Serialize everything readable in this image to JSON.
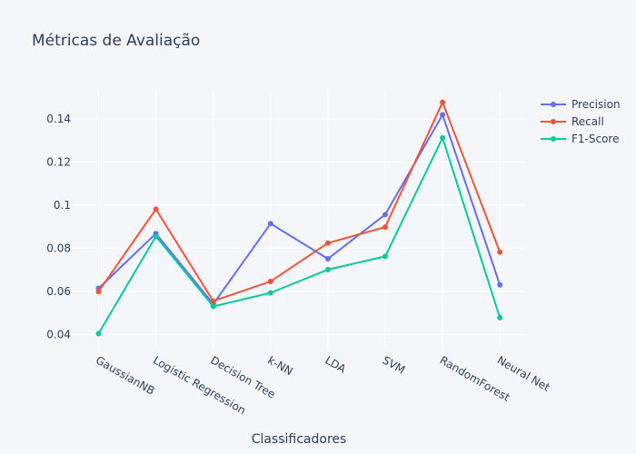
{
  "chart_data": {
    "type": "line",
    "title": "Métricas de Avaliação",
    "xlabel": "Classificadores",
    "ylabel": "",
    "categories": [
      "GaussianNB",
      "Logistic Regression",
      "Decision Tree",
      "k-NN",
      "LDA",
      "SVM",
      "RandomForest",
      "Neural Net"
    ],
    "ylim": [
      0.033,
      0.153
    ],
    "yticks": [
      0.04,
      0.06,
      0.08,
      0.1,
      0.12,
      0.14
    ],
    "ytick_labels": [
      "0.04",
      "0.06",
      "0.08",
      "0.1",
      "0.12",
      "0.14"
    ],
    "grid": true,
    "legend_position": "top-right",
    "series": [
      {
        "name": "Precision",
        "color": "#636efa",
        "values": [
          0.0614,
          0.0868,
          0.0541,
          0.0914,
          0.0751,
          0.0956,
          0.1419,
          0.063
        ]
      },
      {
        "name": "Recall",
        "color": "#ef553b",
        "values": [
          0.0599,
          0.0981,
          0.0555,
          0.0646,
          0.0824,
          0.0898,
          0.1477,
          0.0782
        ]
      },
      {
        "name": "F1-Score",
        "color": "#00cc96",
        "values": [
          0.0404,
          0.0855,
          0.053,
          0.0593,
          0.0701,
          0.0762,
          0.1312,
          0.0478
        ]
      }
    ]
  }
}
